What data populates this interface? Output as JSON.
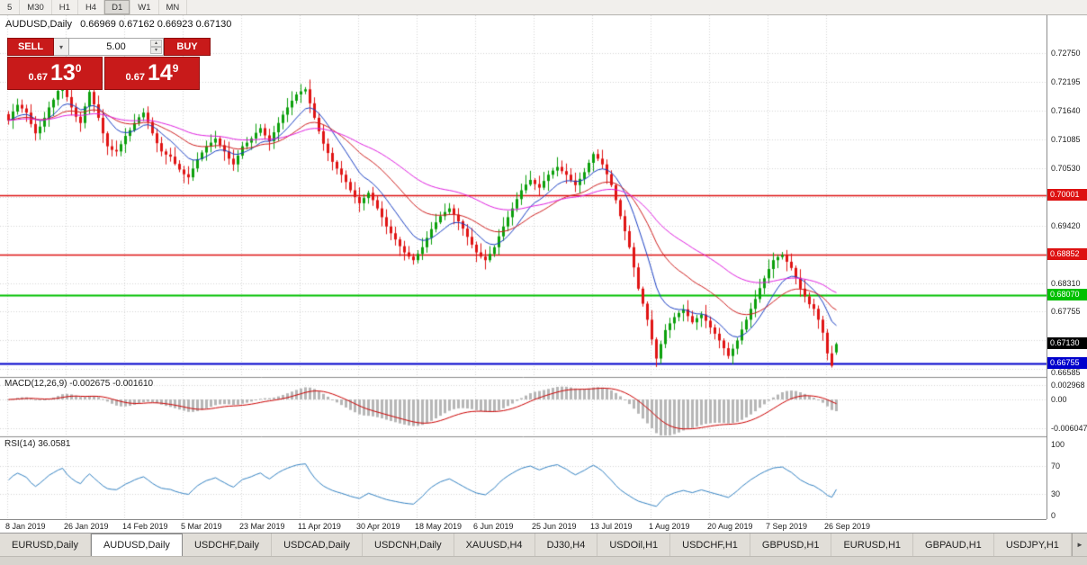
{
  "toolbar": {
    "timeframes": [
      "5",
      "M30",
      "H1",
      "H4",
      "D1",
      "W1",
      "MN"
    ],
    "active": "D1"
  },
  "chart": {
    "symbol": "AUDUSD",
    "period": "Daily",
    "title_line": "AUDUSD,Daily   0.66969 0.67162 0.66923 0.67130",
    "open": "0.66969",
    "high": "0.67162",
    "low": "0.66923",
    "close": "0.67130"
  },
  "trade_panel": {
    "sell_label": "SELL",
    "buy_label": "BUY",
    "volume": "5.00",
    "dropdown_glyph": "▾",
    "spin_up_glyph": "▴",
    "spin_down_glyph": "▾",
    "bid": {
      "small": "0.67",
      "big": "13",
      "sup": "0"
    },
    "ask": {
      "small": "0.67",
      "big": "14",
      "sup": "9"
    }
  },
  "indicators": {
    "macd": {
      "title": "MACD(12,26,9) -0.002675 -0.001610"
    },
    "rsi": {
      "title": "RSI(14) 36.0581"
    }
  },
  "tabs": {
    "scroll_right_glyph": "►",
    "items": [
      {
        "label": "EURUSD,Daily",
        "active": false
      },
      {
        "label": "AUDUSD,Daily",
        "active": true
      },
      {
        "label": "USDCHF,Daily",
        "active": false
      },
      {
        "label": "USDCAD,Daily",
        "active": false
      },
      {
        "label": "USDCNH,Daily",
        "active": false
      },
      {
        "label": "XAUUSD,H4",
        "active": false
      },
      {
        "label": "DJ30,H4",
        "active": false
      },
      {
        "label": "USDOil,H1",
        "active": false
      },
      {
        "label": "USDCHF,H1",
        "active": false
      },
      {
        "label": "GBPUSD,H1",
        "active": false
      },
      {
        "label": "EURUSD,H1",
        "active": false
      },
      {
        "label": "GBPAUD,H1",
        "active": false
      },
      {
        "label": "USDJPY,H1",
        "active": false
      }
    ]
  },
  "chart_data": {
    "type": "candlestick",
    "symbol": "AUDUSD",
    "timeframe": "Daily",
    "up_color": "#0ca00c",
    "down_color": "#e01414",
    "closes": [
      0.7145,
      0.7162,
      0.7175,
      0.7168,
      0.716,
      0.7138,
      0.712,
      0.7133,
      0.715,
      0.717,
      0.7185,
      0.7202,
      0.7215,
      0.719,
      0.717,
      0.7152,
      0.714,
      0.7172,
      0.72,
      0.7176,
      0.715,
      0.712,
      0.7095,
      0.7088,
      0.7085,
      0.7099,
      0.7115,
      0.7126,
      0.714,
      0.7151,
      0.716,
      0.7142,
      0.712,
      0.7101,
      0.7085,
      0.7079,
      0.7075,
      0.7061,
      0.705,
      0.7041,
      0.7035,
      0.7052,
      0.707,
      0.7083,
      0.7095,
      0.7102,
      0.711,
      0.7097,
      0.7085,
      0.7071,
      0.706,
      0.7077,
      0.7095,
      0.7102,
      0.711,
      0.7121,
      0.713,
      0.7116,
      0.7105,
      0.7122,
      0.714,
      0.7156,
      0.717,
      0.7183,
      0.7195,
      0.7201,
      0.7205,
      0.7178,
      0.715,
      0.7124,
      0.71,
      0.7082,
      0.7065,
      0.7052,
      0.704,
      0.7026,
      0.701,
      0.6997,
      0.6985,
      0.6995,
      0.7005,
      0.6991,
      0.6975,
      0.6958,
      0.694,
      0.6927,
      0.6915,
      0.6902,
      0.689,
      0.6882,
      0.6875,
      0.6887,
      0.69,
      0.6918,
      0.6935,
      0.6948,
      0.696,
      0.6968,
      0.6975,
      0.6963,
      0.695,
      0.6936,
      0.692,
      0.6905,
      0.689,
      0.6882,
      0.6875,
      0.6887,
      0.69,
      0.6921,
      0.694,
      0.6958,
      0.6975,
      0.6993,
      0.701,
      0.7021,
      0.703,
      0.7022,
      0.7015,
      0.7028,
      0.704,
      0.7048,
      0.7055,
      0.7047,
      0.704,
      0.7029,
      0.702,
      0.7032,
      0.7045,
      0.7063,
      0.708,
      0.7071,
      0.706,
      0.7041,
      0.702,
      0.6991,
      0.696,
      0.6931,
      0.69,
      0.6861,
      0.682,
      0.6791,
      0.676,
      0.6722,
      0.6685,
      0.6713,
      0.674,
      0.6753,
      0.6765,
      0.6773,
      0.678,
      0.6767,
      0.6755,
      0.6763,
      0.677,
      0.6758,
      0.6745,
      0.6733,
      0.672,
      0.6705,
      0.669,
      0.6704,
      0.672,
      0.6741,
      0.676,
      0.6781,
      0.68,
      0.6821,
      0.684,
      0.6858,
      0.6875,
      0.6881,
      0.6885,
      0.6872,
      0.686,
      0.6841,
      0.682,
      0.6805,
      0.679,
      0.6781,
      0.676,
      0.6735,
      0.6695,
      0.6671,
      0.6713
    ],
    "last_candle": {
      "open": 0.66969,
      "high": 0.67162,
      "low": 0.66923,
      "close": 0.6713
    },
    "date_ticks": [
      {
        "index": 0,
        "label": "8 Jan 2019"
      },
      {
        "index": 13,
        "label": "26 Jan 2019"
      },
      {
        "index": 26,
        "label": "14 Feb 2019"
      },
      {
        "index": 39,
        "label": "5 Mar 2019"
      },
      {
        "index": 52,
        "label": "23 Mar 2019"
      },
      {
        "index": 65,
        "label": "11 Apr 2019"
      },
      {
        "index": 78,
        "label": "30 Apr 2019"
      },
      {
        "index": 91,
        "label": "18 May 2019"
      },
      {
        "index": 104,
        "label": "6 Jun 2019"
      },
      {
        "index": 117,
        "label": "25 Jun 2019"
      },
      {
        "index": 130,
        "label": "13 Jul 2019"
      },
      {
        "index": 143,
        "label": "1 Aug 2019"
      },
      {
        "index": 156,
        "label": "20 Aug 2019"
      },
      {
        "index": 169,
        "label": "7 Sep 2019"
      },
      {
        "index": 182,
        "label": "26 Sep 2019"
      }
    ],
    "price_ticks": [
      {
        "value": 0.7275,
        "label": "0.72750"
      },
      {
        "value": 0.72195,
        "label": "0.72195"
      },
      {
        "value": 0.7164,
        "label": "0.71640"
      },
      {
        "value": 0.71085,
        "label": "0.71085"
      },
      {
        "value": 0.7053,
        "label": "0.70530"
      },
      {
        "value": 0.6942,
        "label": "0.69420"
      },
      {
        "value": 0.6831,
        "label": "0.68310"
      },
      {
        "value": 0.67755,
        "label": "0.67755"
      },
      {
        "value": 0.66585,
        "label": "0.66585"
      }
    ],
    "price_grid": [
      0.7275,
      0.72195,
      0.7164,
      0.71085,
      0.7053,
      0.69975,
      0.6942,
      0.68865,
      0.6831,
      0.67755,
      0.672,
      0.66645
    ],
    "levels": [
      {
        "value": 0.70001,
        "label": "0.70001",
        "color": "#dd1111",
        "width": 1.5
      },
      {
        "value": 0.68852,
        "label": "0.68852",
        "color": "#dd1111",
        "width": 1.5
      },
      {
        "value": 0.6807,
        "label": "0.68070",
        "color": "#00c000",
        "width": 2
      },
      {
        "value": 0.66755,
        "label": "0.66755",
        "color": "#0000cc",
        "width": 2
      }
    ],
    "current_price": {
      "value": 0.6713,
      "label": "0.67130",
      "color": "#000000"
    },
    "ma_lines": [
      {
        "period": 10,
        "color": "#1a3fc4"
      },
      {
        "period": 24,
        "color": "#d02020"
      },
      {
        "period": 50,
        "color": "#e020e0"
      }
    ],
    "macd": {
      "fast": 12,
      "slow": 26,
      "signal": 9,
      "main_value": "-0.002675",
      "signal_value": "-0.001610",
      "histogram_color": "#b6b6b6",
      "signal_color": "#cc0000",
      "axis": [
        {
          "value": 0.002968,
          "label": "0.002968"
        },
        {
          "value": 0,
          "label": "0.00"
        },
        {
          "value": -0.006047,
          "label": "-0.006047"
        }
      ]
    },
    "rsi": {
      "period": 14,
      "value": "36.0581",
      "color": "#3382c3",
      "guides": [
        70,
        30
      ],
      "axis": [
        {
          "value": 100,
          "label": "100"
        },
        {
          "value": 70,
          "label": "70"
        },
        {
          "value": 30,
          "label": "30"
        },
        {
          "value": 0,
          "label": "0"
        }
      ]
    }
  }
}
